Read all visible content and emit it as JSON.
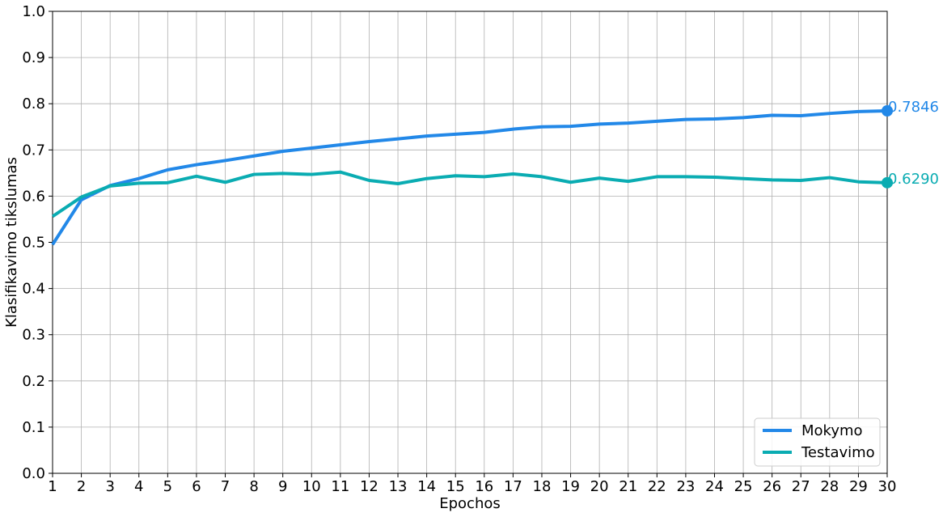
{
  "chart_data": {
    "type": "line",
    "xlabel": "Epochos",
    "ylabel": "Klasifikavimo tikslumas",
    "x": [
      1,
      2,
      3,
      4,
      5,
      6,
      7,
      8,
      9,
      10,
      11,
      12,
      13,
      14,
      15,
      16,
      17,
      18,
      19,
      20,
      21,
      22,
      23,
      24,
      25,
      26,
      27,
      28,
      29,
      30
    ],
    "xlim": [
      1,
      30
    ],
    "ylim": [
      0.0,
      1.0
    ],
    "yticks": [
      "0.0",
      "0.1",
      "0.2",
      "0.3",
      "0.4",
      "0.5",
      "0.6",
      "0.7",
      "0.8",
      "0.9",
      "1.0"
    ],
    "grid": true,
    "legend_position": "bottom-right",
    "series": [
      {
        "name": "Mokymo",
        "color": "#2288e8",
        "end_label": "0.7846",
        "values": [
          0.495,
          0.592,
          0.623,
          0.638,
          0.657,
          0.668,
          0.677,
          0.687,
          0.697,
          0.704,
          0.711,
          0.718,
          0.724,
          0.73,
          0.734,
          0.738,
          0.745,
          0.75,
          0.751,
          0.756,
          0.758,
          0.762,
          0.766,
          0.767,
          0.77,
          0.775,
          0.774,
          0.779,
          0.783,
          0.7846
        ]
      },
      {
        "name": "Testavimo",
        "color": "#0aacb2",
        "end_label": "0.6290",
        "values": [
          0.556,
          0.598,
          0.622,
          0.628,
          0.629,
          0.643,
          0.63,
          0.647,
          0.649,
          0.647,
          0.652,
          0.634,
          0.627,
          0.638,
          0.644,
          0.642,
          0.648,
          0.642,
          0.63,
          0.639,
          0.632,
          0.642,
          0.642,
          0.641,
          0.638,
          0.635,
          0.634,
          0.64,
          0.631,
          0.629
        ]
      }
    ]
  }
}
